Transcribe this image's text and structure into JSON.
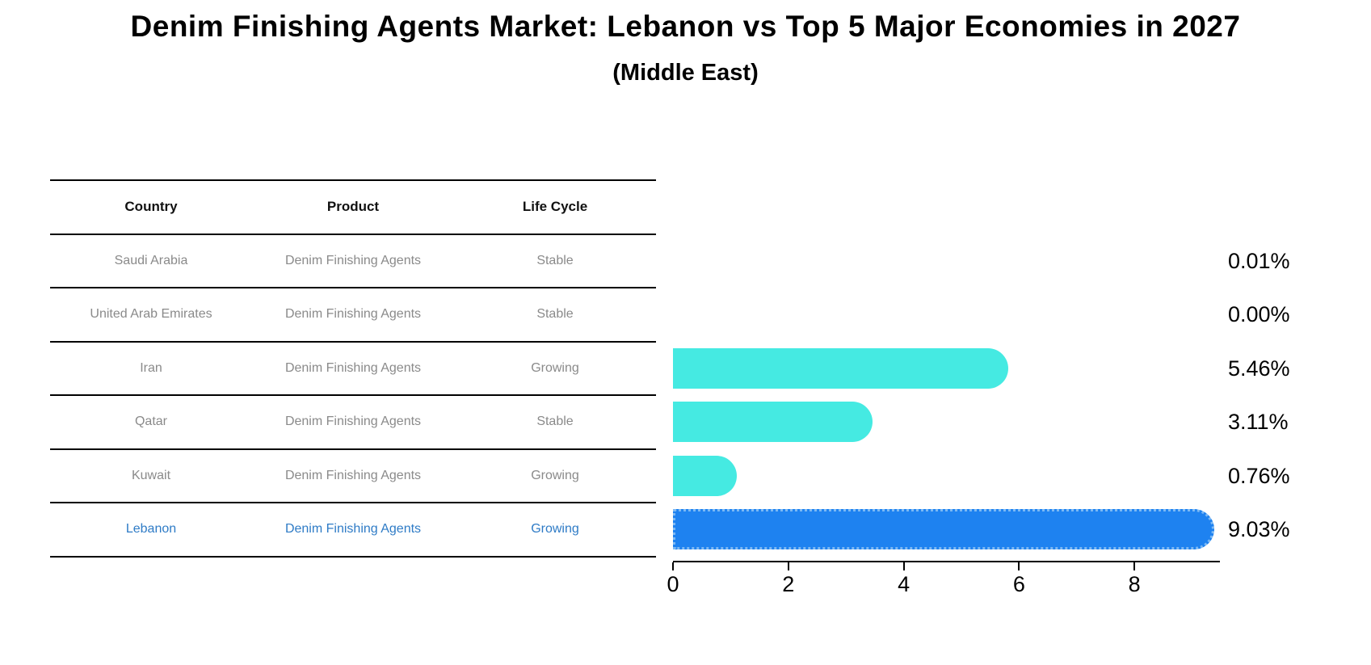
{
  "title": "Denim Finishing Agents Market: Lebanon vs Top 5 Major Economies in 2027",
  "subtitle": "(Middle East)",
  "table": {
    "headers": [
      "Country",
      "Product",
      "Life Cycle"
    ],
    "rows": [
      {
        "country": "Saudi Arabia",
        "product": "Denim Finishing Agents",
        "life_cycle": "Stable",
        "highlight": false
      },
      {
        "country": "United Arab Emirates",
        "product": "Denim Finishing Agents",
        "life_cycle": "Stable",
        "highlight": false
      },
      {
        "country": "Iran",
        "product": "Denim Finishing Agents",
        "life_cycle": "Growing",
        "highlight": false
      },
      {
        "country": "Qatar",
        "product": "Denim Finishing Agents",
        "life_cycle": "Stable",
        "highlight": false
      },
      {
        "country": "Kuwait",
        "product": "Denim Finishing Agents",
        "life_cycle": "Growing",
        "highlight": false
      },
      {
        "country": "Lebanon",
        "product": "Denim Finishing Agents",
        "life_cycle": "Growing",
        "highlight": true
      }
    ]
  },
  "chart_data": {
    "type": "bar",
    "orientation": "horizontal",
    "categories": [
      "Saudi Arabia",
      "United Arab Emirates",
      "Iran",
      "Qatar",
      "Kuwait",
      "Lebanon"
    ],
    "values": [
      0.01,
      0.0,
      5.46,
      3.11,
      0.76,
      9.03
    ],
    "value_labels": [
      "0.01%",
      "0.00%",
      "5.46%",
      "3.11%",
      "0.76%",
      "9.03%"
    ],
    "x_ticks": [
      "0",
      "2",
      "4",
      "6",
      "8"
    ],
    "x_tick_values": [
      0,
      2,
      4,
      6,
      8
    ],
    "xlim": [
      0,
      9.5
    ],
    "grid": false,
    "legend": false,
    "bar_color": "#45EAE2",
    "highlight_color": "#1E82F0",
    "highlight_index": 5
  },
  "colors": {
    "header_text": "#111111",
    "row_text": "#8a8a8a",
    "highlight_text": "#2E7BC6",
    "axis": "#000000"
  }
}
